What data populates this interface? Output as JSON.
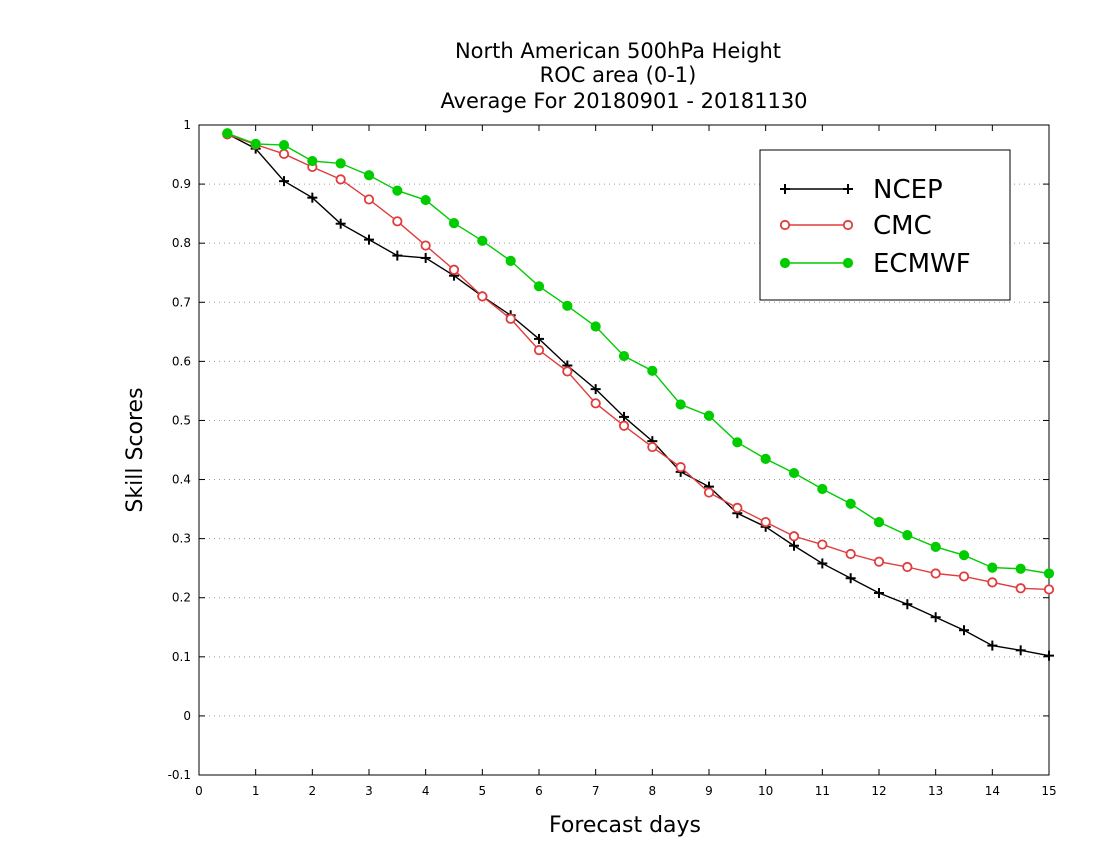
{
  "chart_data": {
    "type": "line",
    "title": [
      "North American 500hPa Height",
      "ROC area (0-1)",
      "Average For 20180901 - 20181130"
    ],
    "xlabel": "Forecast days",
    "ylabel": "Skill Scores",
    "xlim": [
      0,
      15
    ],
    "ylim": [
      -0.1,
      1
    ],
    "xticks": [
      0,
      1,
      2,
      3,
      4,
      5,
      6,
      7,
      8,
      9,
      10,
      11,
      12,
      13,
      14,
      15
    ],
    "yticks": [
      -0.1,
      0,
      0.1,
      0.2,
      0.3,
      0.4,
      0.5,
      0.6,
      0.7,
      0.8,
      0.9,
      1
    ],
    "ytick_labels": [
      "-0.1",
      "0",
      "0.1",
      "0.2",
      "0.3",
      "0.4",
      "0.5",
      "0.6",
      "0.7",
      "0.8",
      "0.9",
      "1"
    ],
    "grid": "horizontal-dotted",
    "legend_position": "top-right",
    "x": [
      0.5,
      1,
      1.5,
      2,
      2.5,
      3,
      3.5,
      4,
      4.5,
      5,
      5.5,
      6,
      6.5,
      7,
      7.5,
      8,
      8.5,
      9,
      9.5,
      10,
      10.5,
      11,
      11.5,
      12,
      12.5,
      13,
      13.5,
      14,
      14.5,
      15
    ],
    "series": [
      {
        "name": "NCEP",
        "color": "#000000",
        "marker": "plus",
        "values": [
          0.985,
          0.96,
          0.905,
          0.877,
          0.833,
          0.806,
          0.779,
          0.775,
          0.745,
          0.71,
          0.678,
          0.638,
          0.593,
          0.553,
          0.506,
          0.465,
          0.413,
          0.388,
          0.343,
          0.32,
          0.288,
          0.258,
          0.233,
          0.208,
          0.189,
          0.167,
          0.145,
          0.119,
          0.111,
          0.102
        ]
      },
      {
        "name": "CMC",
        "color": "#e03c3c",
        "marker": "open-circle",
        "values": [
          0.984,
          0.967,
          0.951,
          0.929,
          0.908,
          0.874,
          0.837,
          0.796,
          0.755,
          0.71,
          0.672,
          0.619,
          0.583,
          0.529,
          0.491,
          0.455,
          0.421,
          0.378,
          0.352,
          0.328,
          0.304,
          0.29,
          0.274,
          0.261,
          0.252,
          0.241,
          0.236,
          0.226,
          0.216,
          0.214
        ]
      },
      {
        "name": "ECMWF",
        "color": "#00cc00",
        "marker": "filled-circle",
        "values": [
          0.986,
          0.968,
          0.966,
          0.939,
          0.935,
          0.915,
          0.889,
          0.873,
          0.834,
          0.804,
          0.77,
          0.727,
          0.694,
          0.659,
          0.609,
          0.584,
          0.527,
          0.508,
          0.463,
          0.435,
          0.411,
          0.384,
          0.359,
          0.328,
          0.306,
          0.286,
          0.272,
          0.251,
          0.249,
          0.241
        ]
      }
    ]
  }
}
